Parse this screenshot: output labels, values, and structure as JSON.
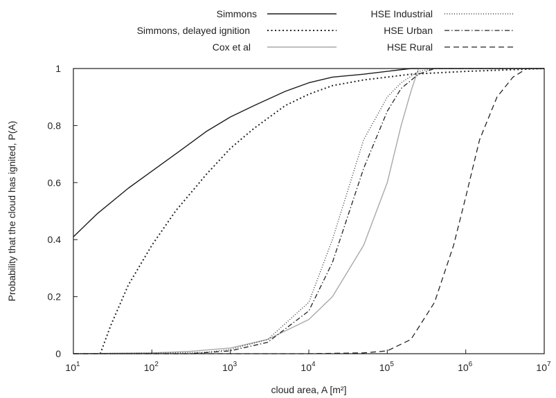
{
  "chart_data": {
    "type": "line",
    "xlabel": "cloud area, A [m²]",
    "ylabel": "Probability that the cloud has ignited, P(A)",
    "x_scale": "log",
    "xlim": [
      10,
      10000000
    ],
    "ylim": [
      0,
      1
    ],
    "x_ticks": [
      {
        "value": 10,
        "base": "10",
        "exp": "1"
      },
      {
        "value": 100,
        "base": "10",
        "exp": "2"
      },
      {
        "value": 1000,
        "base": "10",
        "exp": "3"
      },
      {
        "value": 10000,
        "base": "10",
        "exp": "4"
      },
      {
        "value": 100000,
        "base": "10",
        "exp": "5"
      },
      {
        "value": 1000000,
        "base": "10",
        "exp": "6"
      },
      {
        "value": 10000000,
        "base": "10",
        "exp": "7"
      }
    ],
    "y_ticks": [
      {
        "value": 0,
        "label": "0"
      },
      {
        "value": 0.2,
        "label": "0.2"
      },
      {
        "value": 0.4,
        "label": "0.4"
      },
      {
        "value": 0.6,
        "label": "0.6"
      },
      {
        "value": 0.8,
        "label": "0.8"
      },
      {
        "value": 1,
        "label": "1"
      }
    ],
    "grid": false,
    "legend_position": "top, above plot",
    "series": [
      {
        "name": "Simmons",
        "dash": "none",
        "color": "#1a1a1a",
        "width": 1.4,
        "x": [
          10,
          20,
          50,
          100,
          200,
          500,
          1000,
          2000,
          5000,
          10000,
          20000,
          50000,
          100000,
          200000,
          1000000,
          10000000
        ],
        "y": [
          0.41,
          0.49,
          0.58,
          0.64,
          0.7,
          0.78,
          0.83,
          0.87,
          0.92,
          0.95,
          0.97,
          0.98,
          0.99,
          1,
          1,
          1
        ]
      },
      {
        "name": "Simmons, delayed ignition",
        "dash": "2,3.5",
        "color": "#222222",
        "width": 2,
        "x": [
          22,
          30,
          50,
          100,
          200,
          500,
          1000,
          2000,
          5000,
          10000,
          20000,
          50000,
          100000,
          200000,
          1000000,
          10000000
        ],
        "y": [
          0,
          0.1,
          0.24,
          0.38,
          0.5,
          0.63,
          0.72,
          0.79,
          0.87,
          0.91,
          0.94,
          0.96,
          0.97,
          0.98,
          0.99,
          1
        ]
      },
      {
        "name": "Cox et al",
        "dash": "none",
        "color": "#a8a8a8",
        "width": 1.4,
        "x": [
          10,
          100,
          300,
          1000,
          3000,
          10000,
          20000,
          50000,
          100000,
          150000,
          200000,
          250000,
          1000000,
          10000000
        ],
        "y": [
          0,
          0.003,
          0.008,
          0.02,
          0.05,
          0.12,
          0.2,
          0.38,
          0.6,
          0.8,
          0.92,
          1,
          1,
          1
        ]
      },
      {
        "name": "HSE Industrial",
        "dash": "1,2.5",
        "color": "#333333",
        "width": 1.4,
        "x": [
          10,
          100,
          500,
          1000,
          3000,
          10000,
          20000,
          50000,
          100000,
          150000,
          250000,
          400000,
          10000000
        ],
        "y": [
          0,
          0.002,
          0.005,
          0.015,
          0.05,
          0.18,
          0.4,
          0.75,
          0.9,
          0.95,
          0.99,
          1,
          1
        ]
      },
      {
        "name": "HSE Urban",
        "dash": "7,3,1.5,3",
        "color": "#222222",
        "width": 1.3,
        "x": [
          10,
          300,
          1000,
          3000,
          10000,
          20000,
          50000,
          100000,
          150000,
          250000,
          400000,
          10000000
        ],
        "y": [
          0,
          0,
          0.01,
          0.04,
          0.15,
          0.32,
          0.65,
          0.85,
          0.93,
          0.98,
          1,
          1
        ]
      },
      {
        "name": "HSE Rural",
        "dash": "8,5",
        "color": "#222222",
        "width": 1.3,
        "x": [
          10,
          10000,
          50000,
          100000,
          200000,
          400000,
          700000,
          1000000,
          1500000,
          2500000,
          4000000,
          6000000,
          10000000
        ],
        "y": [
          0,
          0,
          0.003,
          0.01,
          0.05,
          0.18,
          0.38,
          0.55,
          0.75,
          0.9,
          0.97,
          1,
          1
        ]
      }
    ]
  }
}
